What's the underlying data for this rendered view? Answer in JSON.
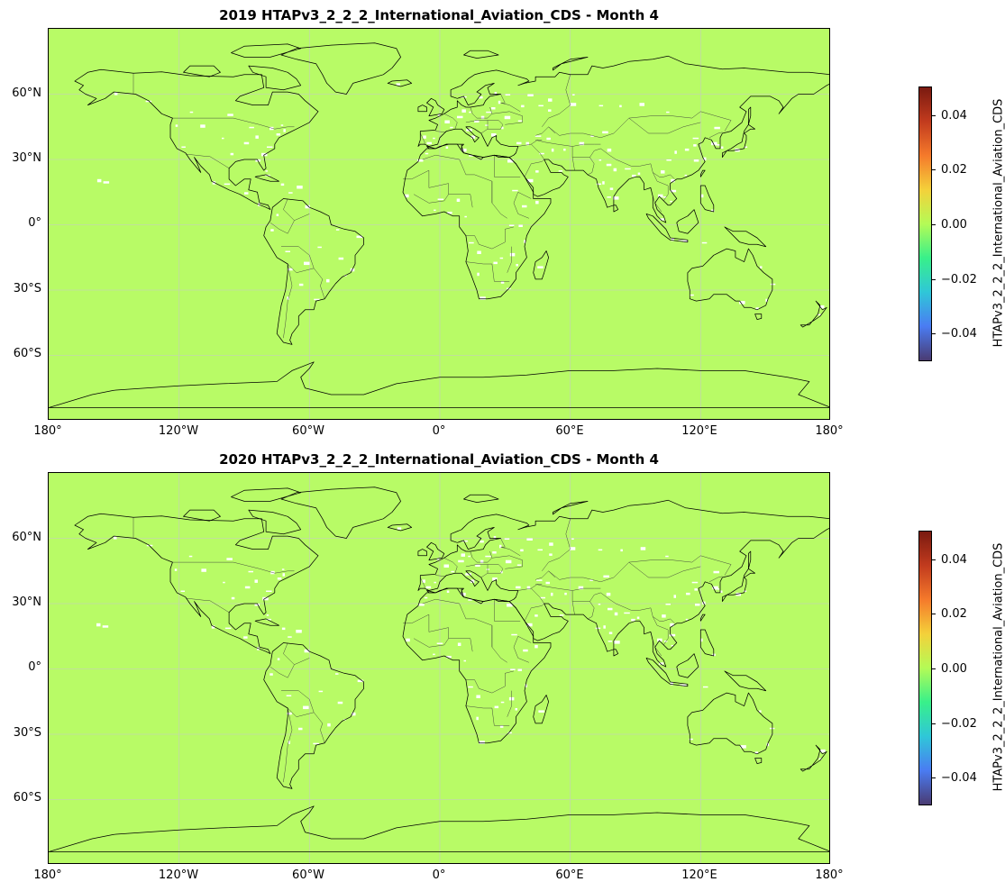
{
  "panels": [
    {
      "title": "2019 HTAPv3_2_2_2_International_Aviation_CDS - Month 4",
      "lat_ticks": [
        "60°N",
        "30°N",
        "0°",
        "30°S",
        "60°S"
      ],
      "lon_ticks": [
        "180°",
        "120°W",
        "60°W",
        "0°",
        "60°E",
        "120°E",
        "180°"
      ],
      "colorbar": {
        "label": "HTAPv3_2_2_2_International_Aviation_CDS",
        "ticks": [
          "0.04",
          "0.02",
          "0.00",
          "−0.02",
          "−0.04"
        ]
      }
    },
    {
      "title": "2020 HTAPv3_2_2_2_International_Aviation_CDS - Month 4",
      "lat_ticks": [
        "60°N",
        "30°N",
        "0°",
        "30°S",
        "60°S"
      ],
      "lon_ticks": [
        "180°",
        "120°W",
        "60°W",
        "0°",
        "60°E",
        "120°E",
        "180°"
      ],
      "colorbar": {
        "label": "HTAPv3_2_2_2_International_Aviation_CDS",
        "ticks": [
          "0.04",
          "0.02",
          "0.00",
          "−0.02",
          "−0.04"
        ]
      }
    }
  ],
  "colors": {
    "field": "#b8fb66",
    "coast": "#000000",
    "border": "#3a3a3a",
    "gridline": "#c8c8c8",
    "colormap": [
      "#4a3b72",
      "#4a7cf2",
      "#2fc7d8",
      "#38f08a",
      "#b4fb56",
      "#f4d13a",
      "#f57a2b",
      "#c23b1e",
      "#7a1a10"
    ]
  },
  "chart_data": {
    "type": "heatmap",
    "projection": "PlateCarree",
    "lon_range": [
      -180,
      180
    ],
    "lat_range": [
      -90,
      90
    ],
    "colorbar_range": [
      -0.05,
      0.05
    ],
    "field_value": 0.0,
    "gridlines": true
  }
}
